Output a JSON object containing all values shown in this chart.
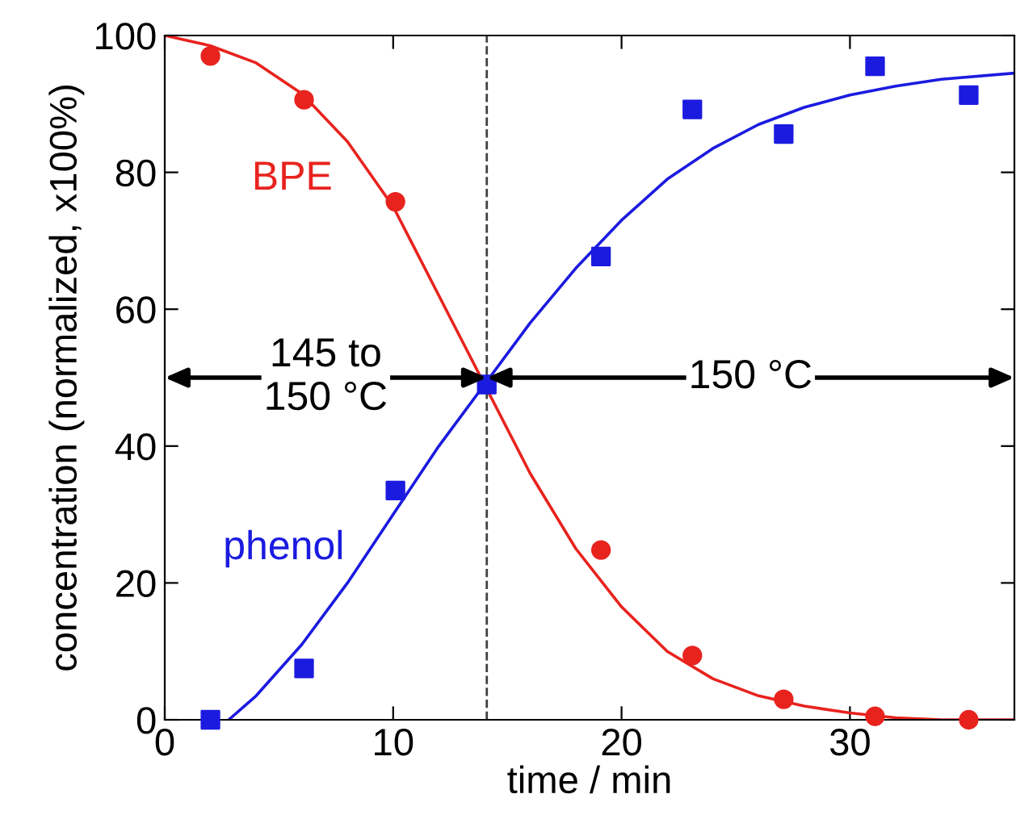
{
  "chart_data": {
    "type": "scatter",
    "xlabel": "time / min",
    "ylabel": "concentration (normalized, x100%)",
    "xlim": [
      0,
      37.2
    ],
    "ylim": [
      0,
      100
    ],
    "xticks": [
      0,
      10,
      20,
      30
    ],
    "yticks": [
      0,
      20,
      40,
      60,
      80,
      100
    ],
    "grid": false,
    "legend": false,
    "series": [
      {
        "type": "line",
        "color": "#e8231e",
        "marker": "none",
        "x": [
          0,
          2,
          4,
          6,
          8,
          10,
          12,
          14,
          16,
          18,
          20,
          22,
          24,
          26,
          28,
          30,
          32,
          34,
          37.2
        ],
        "values": [
          100,
          98.5,
          96,
          91.5,
          84.5,
          75,
          62,
          49,
          36,
          25,
          16.5,
          10,
          6,
          3.5,
          2,
          1,
          0.3,
          0,
          0
        ]
      },
      {
        "type": "line",
        "color": "#1b1be0",
        "marker": "none",
        "x": [
          2.8,
          4,
          6,
          8,
          10,
          12,
          14,
          16,
          18,
          20,
          22,
          24,
          26,
          28,
          30,
          32,
          34,
          37.2
        ],
        "values": [
          0,
          3.5,
          11,
          20,
          30,
          40,
          49,
          58,
          66,
          73,
          79,
          83.5,
          87,
          89.5,
          91.3,
          92.6,
          93.6,
          94.5
        ]
      },
      {
        "name": "BPE",
        "color": "#e8231e",
        "marker": "circle",
        "x": [
          2,
          6.1,
          10.1,
          14.1,
          19.1,
          23.1,
          27.1,
          31.1,
          35.2
        ],
        "values": [
          97,
          90.6,
          75.7,
          null,
          24.8,
          9.4,
          3,
          0.5,
          0
        ]
      },
      {
        "name": "phenol",
        "color": "#1b1be0",
        "marker": "square",
        "x": [
          2,
          6.1,
          10.1,
          14.1,
          19.1,
          23.1,
          27.1,
          31.1,
          35.2
        ],
        "values": [
          0,
          7.5,
          33.5,
          49,
          67.7,
          89.2,
          85.6,
          95.5,
          91.3
        ]
      }
    ],
    "ref_lines": [
      {
        "axis": "x",
        "value": 14.1,
        "label": null,
        "color": "#404040",
        "line_style": "dashed"
      }
    ],
    "annotations": [
      {
        "text": "145 to\n150 °C",
        "x": 14.1,
        "y": 50
      },
      {
        "text": "150 °C",
        "x": 14.1,
        "y": 50
      }
    ]
  }
}
